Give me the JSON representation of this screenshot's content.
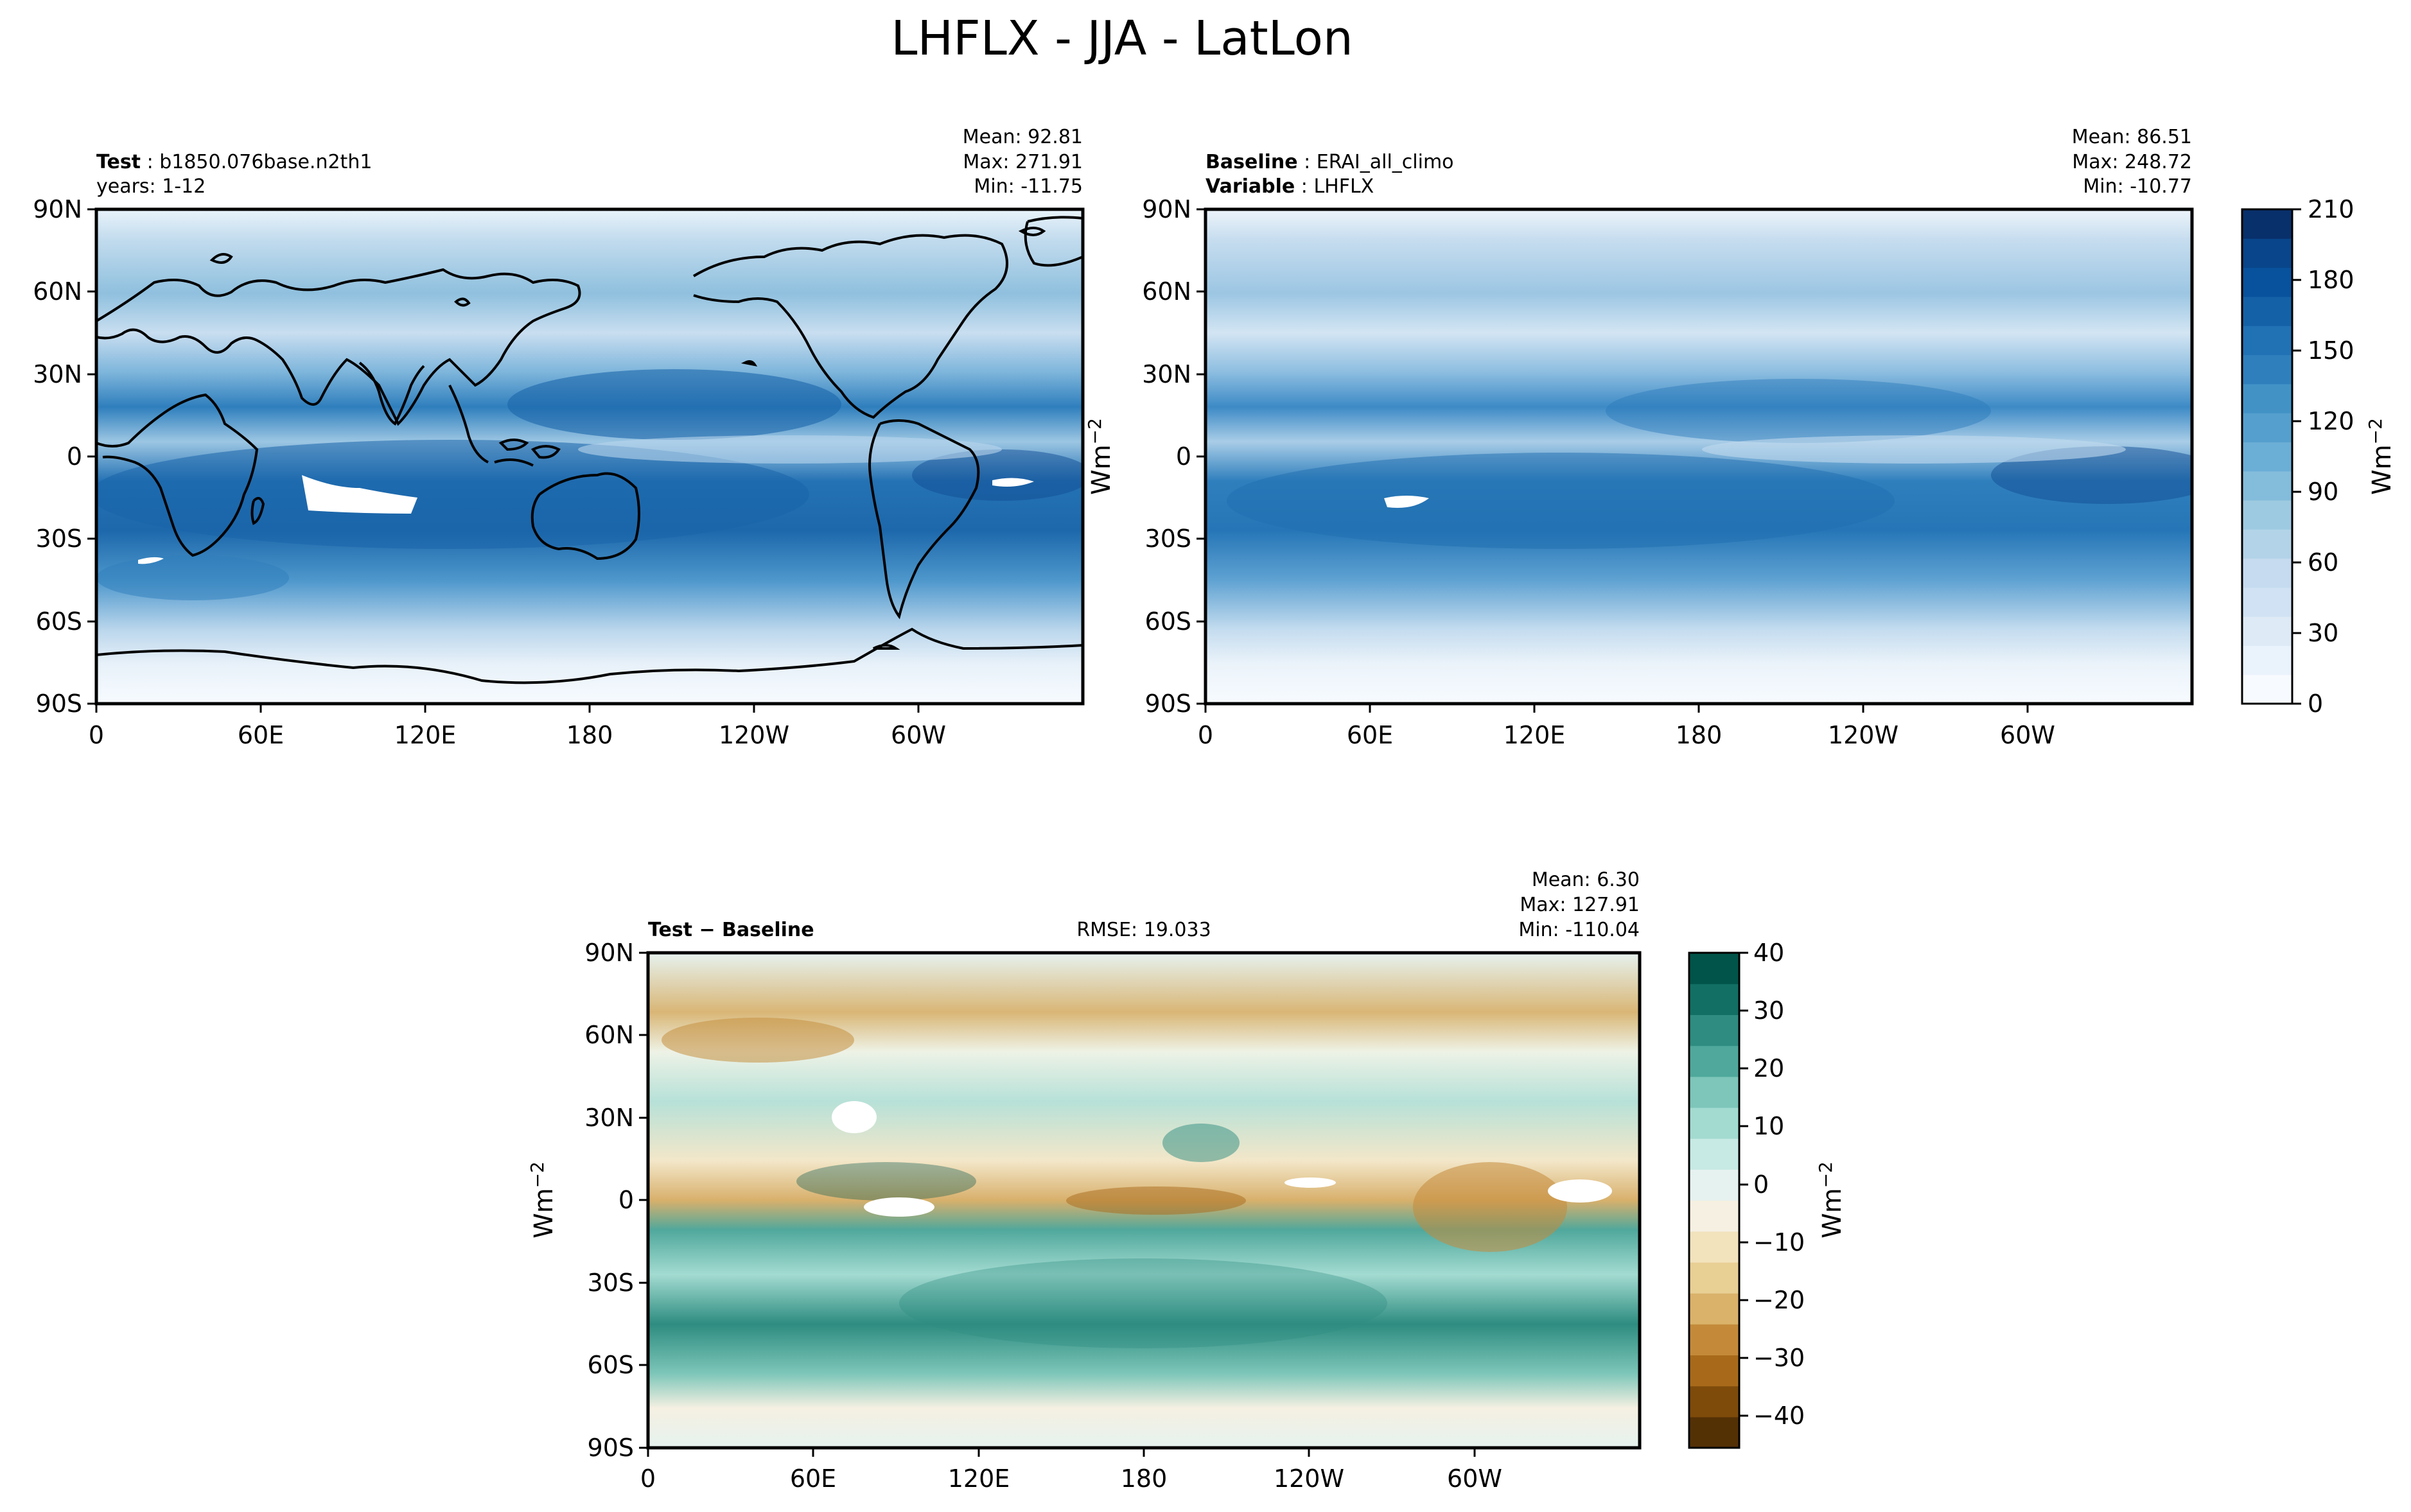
{
  "figure_title": "LHFLX - JJA - LatLon",
  "colors": {
    "blues": [
      "#f7fbff",
      "#eaf2fb",
      "#deebf7",
      "#d0e2f3",
      "#c6dbef",
      "#b3d3e8",
      "#9ecae1",
      "#84bcdb",
      "#6baed6",
      "#559fce",
      "#4292c6",
      "#2f7fbd",
      "#2171b5",
      "#1461a7",
      "#08519c",
      "#08458a",
      "#08306b"
    ],
    "diverging": [
      "#543005",
      "#7e4b0b",
      "#a86a1a",
      "#c48a3a",
      "#dab26a",
      "#e8cf94",
      "#f2e3bd",
      "#f5f0e2",
      "#e6f2ef",
      "#c7eae4",
      "#a3dbd1",
      "#7dc6b9",
      "#50a89c",
      "#2e8c80",
      "#116f63",
      "#01544a"
    ]
  },
  "chart_data": [
    {
      "type": "heatmap",
      "panel": "test",
      "title_lines": [
        {
          "label": "Test",
          "value": "b1850.076base.n2th1"
        },
        {
          "label": "",
          "value": "years: 1-12"
        }
      ],
      "stats": {
        "mean": "Mean: 92.81",
        "max": "Max: 271.91",
        "min": "Min: -11.75"
      },
      "x_ticks": [
        "0",
        "60E",
        "120E",
        "180",
        "120W",
        "60W"
      ],
      "y_ticks": [
        "90N",
        "60N",
        "30N",
        "0",
        "30S",
        "60S",
        "90S"
      ],
      "lon_range": [
        0,
        360
      ],
      "lat_range": [
        -90,
        90
      ],
      "variable": "LHFLX"
    },
    {
      "type": "heatmap",
      "panel": "baseline",
      "title_lines": [
        {
          "label": "Baseline",
          "value": "ERAI_all_climo"
        },
        {
          "label": "Variable",
          "value": "LHFLX"
        }
      ],
      "stats": {
        "mean": "Mean: 86.51",
        "max": "Max: 248.72",
        "min": "Min: -10.77"
      },
      "x_ticks": [
        "0",
        "60E",
        "120E",
        "180",
        "120W",
        "60W"
      ],
      "y_ticks": [
        "90N",
        "60N",
        "30N",
        "0",
        "30S",
        "60S",
        "90S"
      ],
      "ylabel": "Wm",
      "ylabel_sup": "−2",
      "colorbar": {
        "ticks": [
          "210",
          "180",
          "150",
          "120",
          "90",
          "60",
          "30",
          "0"
        ],
        "range": [
          0,
          210
        ],
        "label": "Wm",
        "label_sup": "−2"
      }
    },
    {
      "type": "heatmap",
      "panel": "difference",
      "title_label": "Test − Baseline",
      "rmse": "RMSE: 19.033",
      "stats": {
        "mean": "Mean:  6.30",
        "max": "Max: 127.91",
        "min": "Min: -110.04"
      },
      "x_ticks": [
        "0",
        "60E",
        "120E",
        "180",
        "120W",
        "60W"
      ],
      "y_ticks": [
        "90N",
        "60N",
        "30N",
        "0",
        "30S",
        "60S",
        "90S"
      ],
      "ylabel": "Wm",
      "ylabel_sup": "−2",
      "colorbar": {
        "ticks": [
          "40",
          "30",
          "20",
          "10",
          "0",
          "−10",
          "−20",
          "−30",
          "−40"
        ],
        "range": [
          -40,
          40
        ],
        "label": "Wm",
        "label_sup": "−2"
      }
    }
  ]
}
